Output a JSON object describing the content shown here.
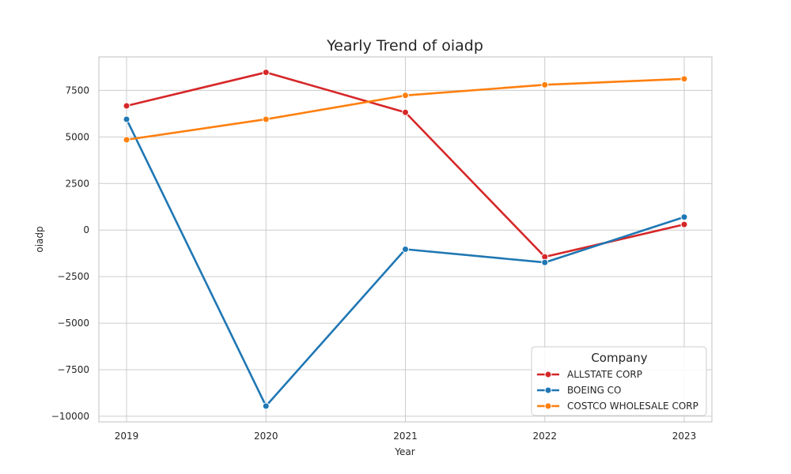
{
  "chart_data": {
    "type": "line",
    "title": "Yearly Trend of oiadp",
    "xlabel": "Year",
    "ylabel": "oiadp",
    "x": [
      "2019",
      "2020",
      "2021",
      "2022",
      "2023"
    ],
    "yticks": [
      -10000,
      -7500,
      -5000,
      -2500,
      0,
      2500,
      5000,
      7500
    ],
    "ytick_labels": [
      "−10000",
      "−7500",
      "−5000",
      "−2500",
      "0",
      "2500",
      "5000",
      "7500"
    ],
    "ylim": [
      -10300,
      9300
    ],
    "grid": true,
    "legend": {
      "title": "Company",
      "placement": "lower-right"
    },
    "series": [
      {
        "name": "ALLSTATE CORP",
        "color": "#d62728",
        "values": [
          6670,
          8470,
          6320,
          -1440,
          300
        ]
      },
      {
        "name": "BOEING CO",
        "color": "#1f77b4",
        "values": [
          5950,
          -9450,
          -1030,
          -1740,
          700
        ]
      },
      {
        "name": "COSTCO WHOLESALE CORP",
        "color": "#ff7f0e",
        "values": [
          4850,
          5950,
          7230,
          7800,
          8120
        ]
      }
    ]
  }
}
